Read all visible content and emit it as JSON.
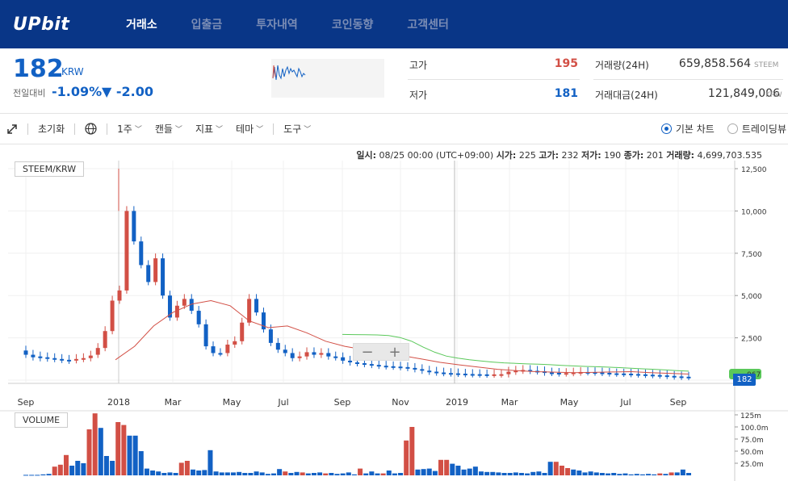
{
  "nav": {
    "logo": "UPbit",
    "items": [
      "거래소",
      "입출금",
      "투자내역",
      "코인동향",
      "고객센터"
    ]
  },
  "ticker": {
    "price": "182",
    "unit": "KRW",
    "prev_label": "전일대비",
    "change_rate": "-1.09%",
    "change_amount": "▼ -2.00",
    "high_label": "고가",
    "high": "195",
    "low_label": "저가",
    "low": "181",
    "volume_label": "거래량(24H)",
    "volume": "659,858.564",
    "volume_unit": "STEEM",
    "amount_label": "거래대금(24H)",
    "amount": "121,849,006",
    "amount_unit": "KRW"
  },
  "toolbar": {
    "reset": "초기화",
    "interval": "1주",
    "candle": "캔들",
    "indicator": "지표",
    "theme": "테마",
    "tools": "도구",
    "basic_chart": "기본 차트",
    "trading_view": "트레이딩뷰"
  },
  "chart": {
    "info": {
      "date_label": "일시:",
      "date": "08/25 00:00 (UTC+09:00)",
      "open_label": "시가:",
      "open": "225",
      "high_label": "고가:",
      "high": "232",
      "low_label": "저가:",
      "low": "190",
      "close_label": "종가:",
      "close": "201",
      "volume_label": "거래량:",
      "volume": "4,699,703.535"
    },
    "symbol_label": "STEEM/KRW",
    "volume_title": "VOLUME",
    "current_price_tag": "182",
    "partial_tag": "067",
    "zoom_out": "−",
    "zoom_in": "+"
  },
  "chart_data": {
    "type": "candlestick",
    "title": "STEEM/KRW",
    "x_ticks": [
      "Sep",
      "2018",
      "Mar",
      "May",
      "Jul",
      "Sep",
      "Nov",
      "2019",
      "Mar",
      "May",
      "Jul",
      "Sep"
    ],
    "y_ticks": [
      "12,500",
      "10,000",
      "7,500",
      "5,000",
      "2,500",
      "0"
    ],
    "ylim": [
      0,
      12500
    ],
    "volume_ticks": [
      "125m",
      "100.0m",
      "75.0m",
      "50.0m",
      "25.0m"
    ],
    "volume_ylim": [
      0,
      125
    ],
    "candles": [
      [
        1750,
        1500
      ],
      [
        1500,
        1350
      ],
      [
        1400,
        1300
      ],
      [
        1350,
        1280
      ],
      [
        1300,
        1250
      ],
      [
        1250,
        1200
      ],
      [
        1200,
        1150
      ],
      [
        1180,
        1250
      ],
      [
        1250,
        1300
      ],
      [
        1300,
        1450
      ],
      [
        1500,
        1900
      ],
      [
        1900,
        2900
      ],
      [
        2900,
        4700
      ],
      [
        4700,
        5300
      ],
      [
        5300,
        10000
      ],
      [
        10000,
        8200
      ],
      [
        8200,
        6800
      ],
      [
        6800,
        5800
      ],
      [
        5800,
        7200
      ],
      [
        7200,
        5000
      ],
      [
        5000,
        3700
      ],
      [
        3700,
        4400
      ],
      [
        4400,
        4800
      ],
      [
        4800,
        4100
      ],
      [
        4100,
        3300
      ],
      [
        3300,
        2000
      ],
      [
        2000,
        1600
      ],
      [
        1600,
        1600
      ],
      [
        1600,
        2100
      ],
      [
        2100,
        2300
      ],
      [
        2300,
        3400
      ],
      [
        3400,
        4800
      ],
      [
        4800,
        4000
      ],
      [
        4000,
        3000
      ],
      [
        3000,
        2200
      ],
      [
        2200,
        1800
      ],
      [
        1800,
        1600
      ],
      [
        1600,
        1300
      ],
      [
        1300,
        1400
      ],
      [
        1400,
        1650
      ],
      [
        1650,
        1500
      ],
      [
        1500,
        1600
      ],
      [
        1600,
        1400
      ],
      [
        1400,
        1350
      ],
      [
        1350,
        1150
      ],
      [
        1150,
        1050
      ],
      [
        1050,
        1000
      ],
      [
        1000,
        950
      ],
      [
        950,
        900
      ],
      [
        900,
        850
      ],
      [
        850,
        820
      ],
      [
        820,
        800
      ],
      [
        800,
        770
      ],
      [
        770,
        720
      ],
      [
        720,
        650
      ],
      [
        650,
        560
      ],
      [
        560,
        500
      ],
      [
        500,
        450
      ],
      [
        450,
        420
      ],
      [
        420,
        400
      ],
      [
        400,
        380
      ],
      [
        380,
        360
      ],
      [
        360,
        350
      ],
      [
        350,
        340
      ],
      [
        340,
        330
      ],
      [
        330,
        340
      ],
      [
        340,
        350
      ],
      [
        350,
        500
      ],
      [
        500,
        560
      ],
      [
        560,
        600
      ],
      [
        600,
        550
      ],
      [
        550,
        520
      ],
      [
        520,
        450
      ],
      [
        450,
        430
      ],
      [
        430,
        400
      ],
      [
        400,
        420
      ],
      [
        420,
        450
      ],
      [
        450,
        480
      ],
      [
        480,
        470
      ],
      [
        470,
        450
      ],
      [
        450,
        430
      ],
      [
        430,
        400
      ],
      [
        400,
        390
      ],
      [
        390,
        380
      ],
      [
        380,
        360
      ],
      [
        360,
        340
      ],
      [
        340,
        320
      ],
      [
        320,
        300
      ],
      [
        300,
        280
      ],
      [
        280,
        250
      ],
      [
        250,
        220
      ],
      [
        220,
        200
      ],
      [
        200,
        182
      ]
    ],
    "ma_long": [
      2700,
      2690,
      2680,
      2670,
      2640,
      2520,
      2300,
      1950,
      1650,
      1420,
      1300,
      1200,
      1130,
      1070,
      1020,
      990,
      960,
      940,
      910,
      870,
      840,
      810,
      790,
      770,
      740,
      700,
      670,
      640,
      600,
      560,
      530
    ],
    "ma_short": [
      1200,
      2000,
      3200,
      4000,
      4500,
      4700,
      4400,
      3500,
      3100,
      3200,
      2800,
      2300,
      2000,
      1800,
      1650,
      1450,
      1250,
      1050,
      900,
      770,
      640,
      560,
      500,
      470,
      440,
      460,
      480,
      500,
      440,
      400,
      360
    ],
    "volumes": [
      1,
      1,
      1,
      2,
      3,
      18,
      22,
      42,
      20,
      30,
      25,
      95,
      128,
      98,
      40,
      30,
      110,
      104,
      82,
      82,
      50,
      14,
      10,
      8,
      5,
      6,
      5,
      26,
      30,
      12,
      10,
      11,
      52,
      8,
      6,
      6,
      6,
      7,
      5,
      5,
      8,
      6,
      3,
      4,
      13,
      8,
      5,
      7,
      6,
      4,
      5,
      6,
      4,
      5,
      3,
      4,
      6,
      2,
      14,
      4,
      8,
      4,
      4,
      10,
      4,
      5,
      72,
      100,
      12,
      13,
      14,
      9,
      32,
      32,
      24,
      20,
      12,
      14,
      18,
      8,
      7,
      7,
      6,
      5,
      5,
      6,
      5,
      4,
      7,
      8,
      5,
      28,
      28,
      20,
      15,
      12,
      10,
      6,
      8,
      6,
      5,
      4,
      5,
      3,
      4,
      2,
      3,
      2,
      3,
      2,
      4,
      3,
      6,
      6,
      12,
      5
    ],
    "volume_colors_up_indices": [
      5,
      6,
      7,
      11,
      12,
      16,
      17,
      27,
      28,
      45,
      48,
      52,
      58,
      62,
      66,
      67,
      72,
      73,
      92,
      93,
      94,
      110,
      112
    ]
  },
  "colors": {
    "nav_bg": "#093687",
    "up": "#d24f45",
    "down": "#1261c4",
    "ma_short": "#d24f45",
    "ma_long": "#5ac85a"
  }
}
